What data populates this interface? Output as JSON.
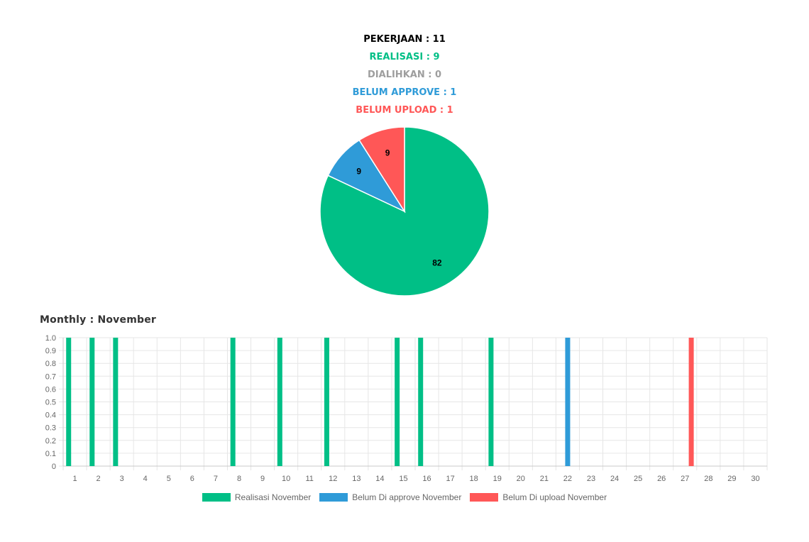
{
  "summary": {
    "pekerjaan": "PEKERJAAN : 11",
    "realisasi": "REALISASI : 9",
    "dialihkan": "DIALIHKAN : 0",
    "belum_approve": "BELUM APPROVE : 1",
    "belum_upload": "BELUM UPLOAD : 1"
  },
  "colors": {
    "pekerjaan": "#000000",
    "realisasi": "#00bf86",
    "dialihkan": "#9e9e9e",
    "belum_approve": "#2f9bd8",
    "belum_upload": "#ff5757",
    "grid": "#e6e6e6",
    "tick": "#666666"
  },
  "monthly": {
    "title": "Monthly : November"
  },
  "chart_data": [
    {
      "type": "pie",
      "slices": [
        {
          "label": "Realisasi",
          "value": 82,
          "color": "#00bf86"
        },
        {
          "label": "Belum Approve",
          "value": 9,
          "color": "#2f9bd8"
        },
        {
          "label": "Belum Upload",
          "value": 9,
          "color": "#ff5757"
        }
      ]
    },
    {
      "type": "bar",
      "categories": [
        "1",
        "2",
        "3",
        "4",
        "5",
        "6",
        "7",
        "8",
        "9",
        "10",
        "11",
        "12",
        "13",
        "14",
        "15",
        "16",
        "17",
        "18",
        "19",
        "20",
        "21",
        "22",
        "23",
        "24",
        "25",
        "26",
        "27",
        "28",
        "29",
        "30"
      ],
      "ylim": [
        0,
        1.0
      ],
      "yticks": [
        "0",
        "0.1",
        "0.2",
        "0.3",
        "0.4",
        "0.5",
        "0.6",
        "0.7",
        "0.8",
        "0.9",
        "1.0"
      ],
      "series": [
        {
          "name": "Realisasi November",
          "color": "#00bf86",
          "values": [
            1,
            1,
            1,
            0,
            0,
            0,
            0,
            1,
            0,
            1,
            0,
            1,
            0,
            0,
            1,
            1,
            0,
            0,
            1,
            0,
            0,
            0,
            0,
            0,
            0,
            0,
            0,
            0,
            0,
            0
          ]
        },
        {
          "name": "Belum Di approve November",
          "color": "#2f9bd8",
          "values": [
            0,
            0,
            0,
            0,
            0,
            0,
            0,
            0,
            0,
            0,
            0,
            0,
            0,
            0,
            0,
            0,
            0,
            0,
            0,
            0,
            0,
            1,
            0,
            0,
            0,
            0,
            0,
            0,
            0,
            0
          ]
        },
        {
          "name": "Belum Di upload November",
          "color": "#ff5757",
          "values": [
            0,
            0,
            0,
            0,
            0,
            0,
            0,
            0,
            0,
            0,
            0,
            0,
            0,
            0,
            0,
            0,
            0,
            0,
            0,
            0,
            0,
            0,
            0,
            0,
            0,
            0,
            1,
            0,
            0,
            0
          ]
        }
      ],
      "grid": true,
      "legend": "bottom"
    }
  ]
}
